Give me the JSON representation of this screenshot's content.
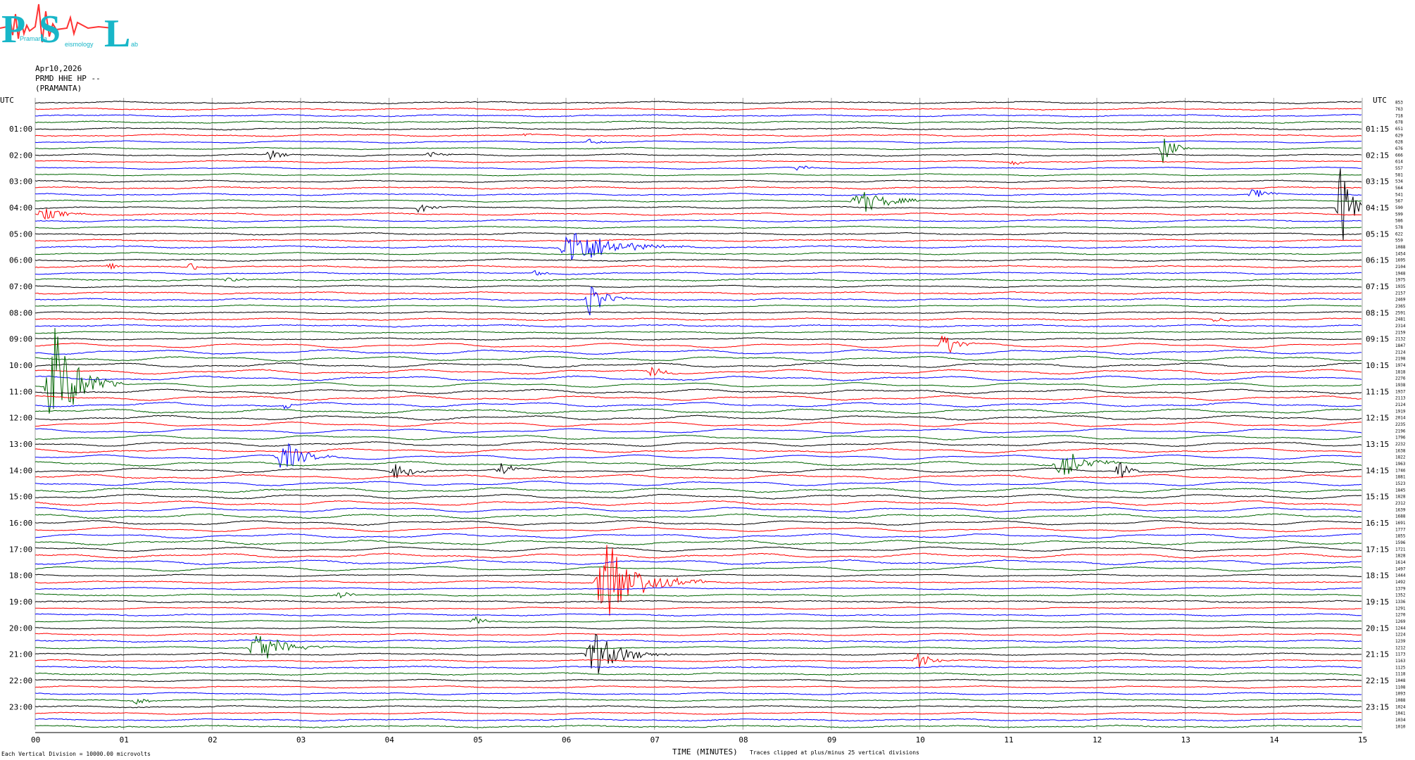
{
  "logo": {
    "letters": [
      "P",
      "S",
      "L"
    ],
    "small_text": [
      "Pramanta",
      "eismology",
      "ab"
    ]
  },
  "header": {
    "date": "Apr10,2026",
    "station": "PRMD HHE HP --",
    "location": "(PRAMANTA)"
  },
  "left_axis_title": "UTC",
  "right_axis_title": "UTC",
  "colors": {
    "sequence": [
      "#000000",
      "#ff0000",
      "#0000ff",
      "#006400"
    ],
    "grid": "#a0a0a0",
    "baseline": "#000000"
  },
  "footer": {
    "left_note": "Each Vertical Division = 10000.00 microvolts",
    "x_title": "TIME (MINUTES)",
    "clip_note": "Traces clipped at plus/minus 25 vertical divisions"
  },
  "chart_data": {
    "type": "line",
    "x_range": [
      0,
      15
    ],
    "x_ticks": [
      "00",
      "01",
      "02",
      "03",
      "04",
      "05",
      "06",
      "07",
      "08",
      "09",
      "10",
      "11",
      "12",
      "13",
      "14",
      "15"
    ],
    "left_labels": [
      "01:00",
      "02:00",
      "03:00",
      "04:00",
      "05:00",
      "06:00",
      "07:00",
      "08:00",
      "09:00",
      "10:00",
      "11:00",
      "12:00",
      "13:00",
      "14:00",
      "15:00",
      "16:00",
      "17:00",
      "18:00",
      "19:00",
      "20:00",
      "21:00",
      "22:00",
      "23:00"
    ],
    "right_labels": [
      "01:15",
      "02:15",
      "03:15",
      "04:15",
      "05:15",
      "06:15",
      "07:15",
      "08:15",
      "09:15",
      "10:15",
      "11:15",
      "12:15",
      "13:15",
      "14:15",
      "15:15",
      "16:15",
      "17:15",
      "18:15",
      "19:15",
      "20:15",
      "21:15",
      "22:15",
      "23:15"
    ],
    "traces": 96,
    "trace_values": [
      853,
      763,
      718,
      678,
      651,
      629,
      628,
      676,
      666,
      614,
      557,
      581,
      534,
      564,
      541,
      567,
      590,
      599,
      586,
      578,
      622,
      559,
      1088,
      1454,
      1695,
      2104,
      1948,
      1975,
      1935,
      2157,
      2469,
      2365,
      2591,
      2481,
      2314,
      2159,
      2132,
      1847,
      2124,
      2198,
      1974,
      1818,
      2276,
      1938,
      1937,
      2113,
      2124,
      1919,
      2014,
      2235,
      2196,
      1796,
      2232,
      1638,
      1822,
      1963,
      1746,
      1881,
      1523,
      1845,
      1828,
      2312,
      1639,
      1688,
      1691,
      1777,
      1855,
      1596,
      1721,
      1828,
      1614,
      1497,
      1444,
      1492,
      1379,
      1352,
      1336,
      1291,
      1270,
      1269,
      1244,
      1224,
      1239,
      1212,
      1173,
      1163,
      1125,
      1118,
      1048,
      1108,
      1093,
      1088,
      1024,
      1041,
      1034,
      1010
    ],
    "events": [
      {
        "trace": 17,
        "x": 0.0,
        "len": 0.8,
        "amp": 9
      },
      {
        "trace": 16,
        "x": 4.3,
        "len": 0.4,
        "amp": 9
      },
      {
        "trace": 15,
        "x": 9.2,
        "len": 1.1,
        "amp": 18
      },
      {
        "trace": 16,
        "x": 14.7,
        "len": 0.4,
        "amp": 70
      },
      {
        "trace": 14,
        "x": 13.7,
        "len": 0.5,
        "amp": 9
      },
      {
        "trace": 10,
        "x": 8.55,
        "len": 0.4,
        "amp": 5
      },
      {
        "trace": 7,
        "x": 12.7,
        "len": 0.4,
        "amp": 22
      },
      {
        "trace": 9,
        "x": 11.0,
        "len": 0.4,
        "amp": 5
      },
      {
        "trace": 6,
        "x": 6.2,
        "len": 0.4,
        "amp": 6
      },
      {
        "trace": 5,
        "x": 5.5,
        "len": 0.2,
        "amp": 4
      },
      {
        "trace": 8,
        "x": 2.6,
        "len": 0.5,
        "amp": 8
      },
      {
        "trace": 8,
        "x": 4.4,
        "len": 0.5,
        "amp": 5
      },
      {
        "trace": 22,
        "x": 5.9,
        "len": 1.5,
        "amp": 30
      },
      {
        "trace": 25,
        "x": 0.8,
        "len": 0.3,
        "amp": 5
      },
      {
        "trace": 25,
        "x": 1.7,
        "len": 0.4,
        "amp": 6
      },
      {
        "trace": 27,
        "x": 2.1,
        "len": 0.5,
        "amp": 5
      },
      {
        "trace": 26,
        "x": 5.6,
        "len": 0.4,
        "amp": 5
      },
      {
        "trace": 30,
        "x": 6.2,
        "len": 0.6,
        "amp": 25
      },
      {
        "trace": 33,
        "x": 13.3,
        "len": 0.3,
        "amp": 8
      },
      {
        "trace": 37,
        "x": 10.2,
        "len": 0.5,
        "amp": 22
      },
      {
        "trace": 41,
        "x": 6.9,
        "len": 0.5,
        "amp": 10
      },
      {
        "trace": 43,
        "x": 0.1,
        "len": 0.9,
        "amp": 90
      },
      {
        "trace": 46,
        "x": 2.8,
        "len": 0.2,
        "amp": 8
      },
      {
        "trace": 54,
        "x": 2.7,
        "len": 0.8,
        "amp": 25
      },
      {
        "trace": 56,
        "x": 4.0,
        "len": 0.6,
        "amp": 12
      },
      {
        "trace": 56,
        "x": 5.2,
        "len": 0.5,
        "amp": 10
      },
      {
        "trace": 55,
        "x": 11.5,
        "len": 0.8,
        "amp": 30
      },
      {
        "trace": 56,
        "x": 12.2,
        "len": 0.4,
        "amp": 15
      },
      {
        "trace": 73,
        "x": 6.3,
        "len": 1.3,
        "amp": 60
      },
      {
        "trace": 75,
        "x": 3.4,
        "len": 0.4,
        "amp": 6
      },
      {
        "trace": 83,
        "x": 2.4,
        "len": 1.0,
        "amp": 28
      },
      {
        "trace": 84,
        "x": 6.2,
        "len": 1.0,
        "amp": 35
      },
      {
        "trace": 85,
        "x": 9.9,
        "len": 0.6,
        "amp": 12
      },
      {
        "trace": 79,
        "x": 4.9,
        "len": 0.5,
        "amp": 6
      },
      {
        "trace": 91,
        "x": 1.1,
        "len": 0.4,
        "amp": 6
      }
    ]
  }
}
